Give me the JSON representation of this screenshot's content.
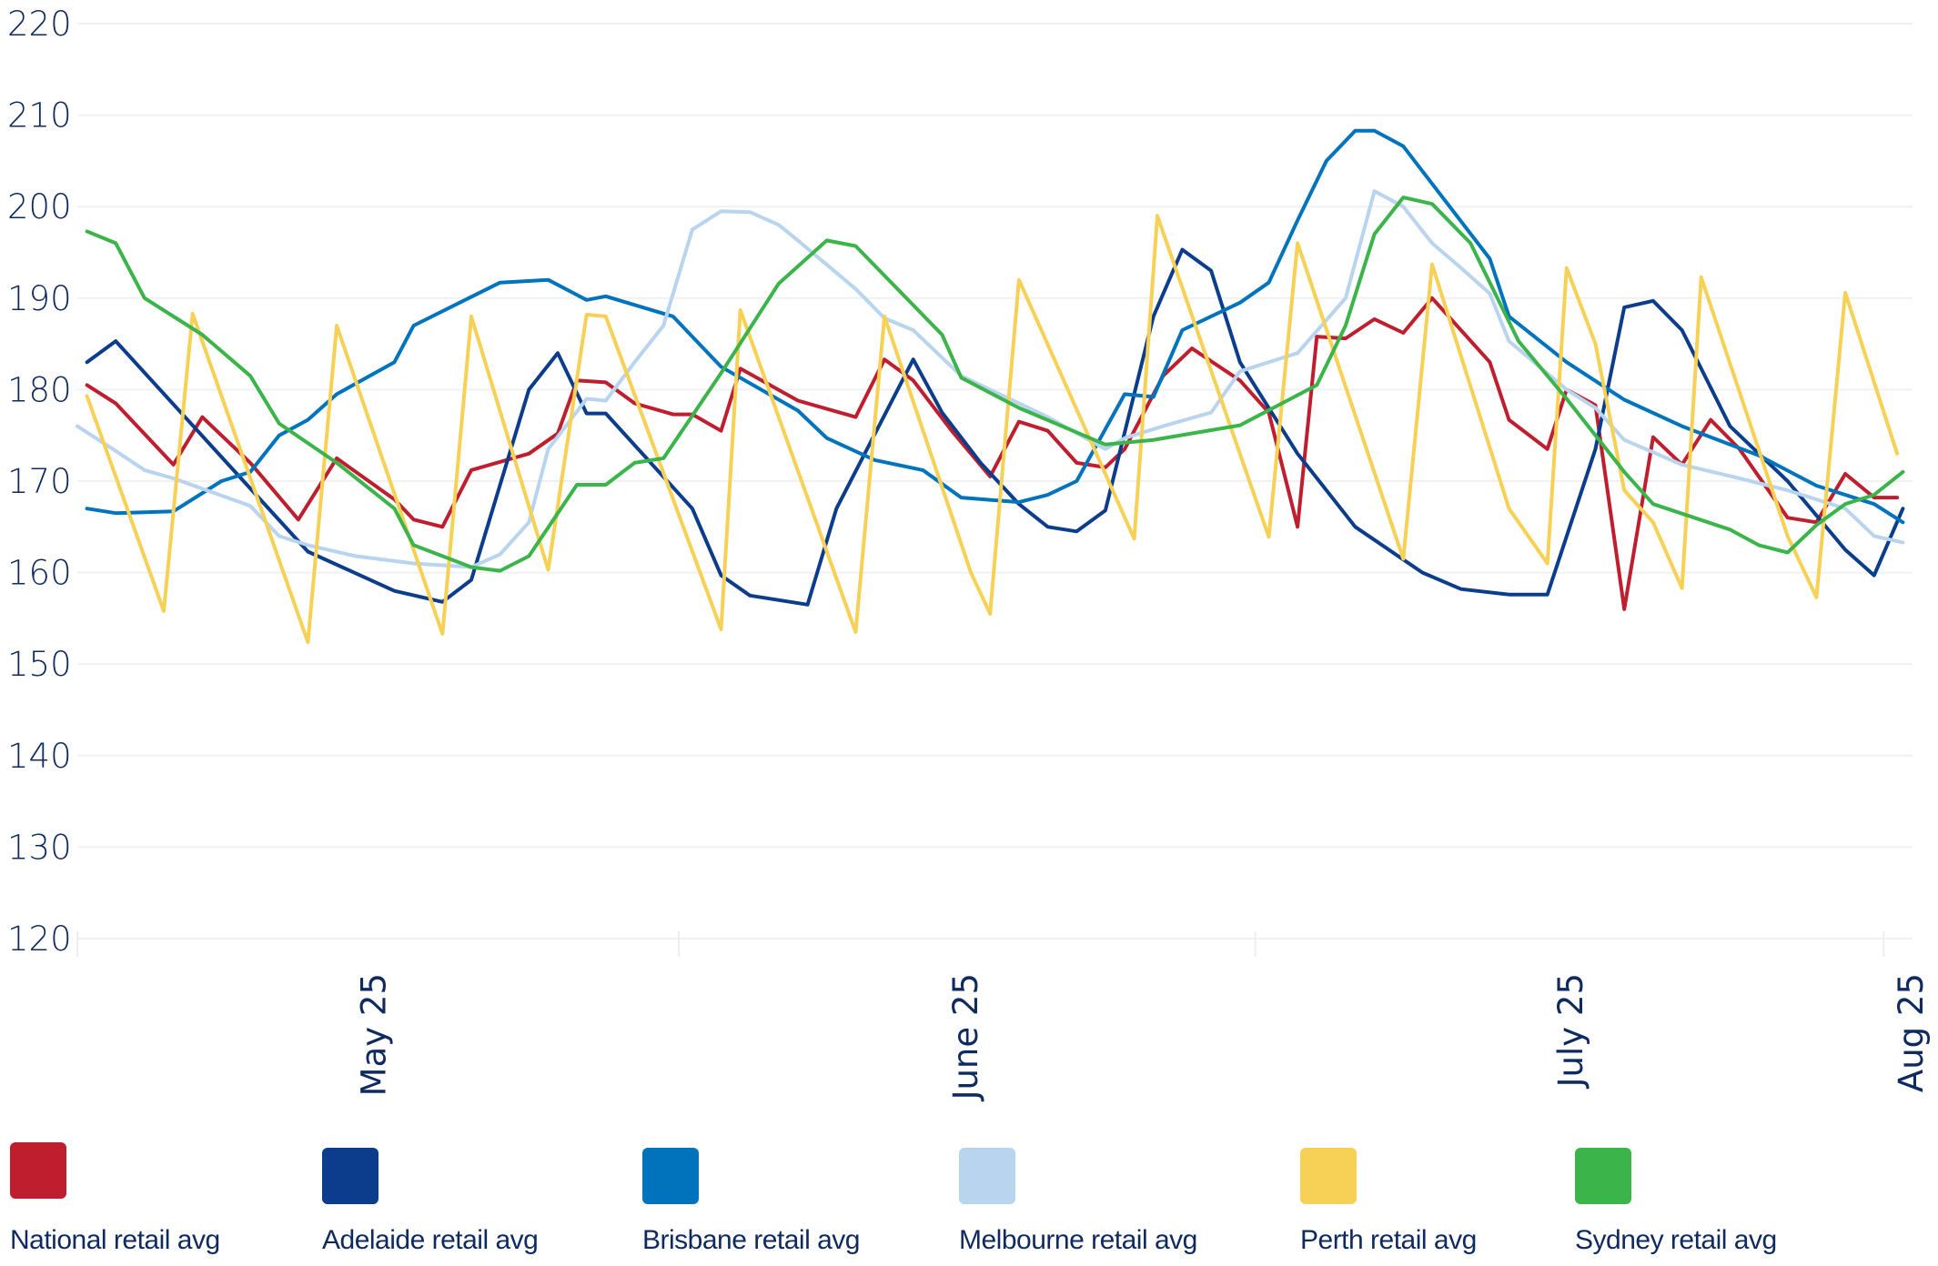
{
  "chart_data": {
    "type": "line",
    "title": "",
    "xlabel": "",
    "ylabel": "",
    "x_unit": "days (approx.)",
    "xlim": [
      0,
      95.5
    ],
    "ylim": [
      120,
      220
    ],
    "yticks": [
      120,
      130,
      140,
      150,
      160,
      170,
      180,
      190,
      200,
      210,
      220
    ],
    "ytick_labels": [
      "120",
      "130",
      "140",
      "150",
      "160",
      "170",
      "180",
      "190",
      "200",
      "210",
      "220"
    ],
    "xticks": [
      {
        "x": 15.4,
        "label": "May 25"
      },
      {
        "x": 46.2,
        "label": "June 25"
      },
      {
        "x": 77.7,
        "label": "July 25"
      },
      {
        "x": 95.4,
        "label": "Aug 25"
      }
    ],
    "x_gridlines": [
      0,
      31.3,
      61.3,
      94
    ],
    "grid": true,
    "legend_placement": "bottom",
    "series": [
      {
        "name": "National retail avg",
        "color": "#be1e2d",
        "points": [
          [
            0.5,
            180.5
          ],
          [
            2,
            178.5
          ],
          [
            5,
            171.8
          ],
          [
            6.5,
            177
          ],
          [
            9,
            172
          ],
          [
            11.5,
            165.8
          ],
          [
            13.5,
            172.5
          ],
          [
            16.5,
            168
          ],
          [
            17.5,
            165.8
          ],
          [
            19,
            165
          ],
          [
            20.5,
            171.2
          ],
          [
            23.5,
            173
          ],
          [
            25,
            175.2
          ],
          [
            26,
            181
          ],
          [
            27.5,
            180.8
          ],
          [
            29,
            178.5
          ],
          [
            31,
            177.3
          ],
          [
            32,
            177.3
          ],
          [
            33.5,
            175.5
          ],
          [
            34.5,
            182.3
          ],
          [
            37.5,
            178.8
          ],
          [
            40.5,
            177
          ],
          [
            42,
            183.3
          ],
          [
            43.5,
            181
          ],
          [
            45.5,
            175.5
          ],
          [
            47.5,
            170.5
          ],
          [
            49,
            176.5
          ],
          [
            50.5,
            175.5
          ],
          [
            52,
            172
          ],
          [
            53.5,
            171.5
          ],
          [
            54.5,
            173.5
          ],
          [
            56.5,
            181.5
          ],
          [
            58,
            184.5
          ],
          [
            60.5,
            181
          ],
          [
            62,
            177.5
          ],
          [
            63.5,
            165
          ],
          [
            64.5,
            185.8
          ],
          [
            66,
            185.6
          ],
          [
            67.5,
            187.7
          ],
          [
            69,
            186.2
          ],
          [
            70.5,
            190
          ],
          [
            73.5,
            183
          ],
          [
            74.5,
            176.7
          ],
          [
            76.5,
            173.5
          ],
          [
            77.5,
            180
          ],
          [
            79,
            178.3
          ],
          [
            80.5,
            156
          ],
          [
            82,
            174.8
          ],
          [
            83.5,
            171.8
          ],
          [
            85,
            176.7
          ],
          [
            86.5,
            173.5
          ],
          [
            89,
            166
          ],
          [
            90.5,
            165.5
          ],
          [
            92,
            170.8
          ],
          [
            93.5,
            168.2
          ],
          [
            94.7,
            168.2
          ]
        ]
      },
      {
        "name": "Adelaide retail avg",
        "color": "#0b3d8c",
        "points": [
          [
            0.5,
            183
          ],
          [
            2,
            185.3
          ],
          [
            12,
            162.3
          ],
          [
            16.5,
            158
          ],
          [
            19,
            156.8
          ],
          [
            20.5,
            159.2
          ],
          [
            23.5,
            180
          ],
          [
            25,
            184
          ],
          [
            26.5,
            177.4
          ],
          [
            27.5,
            177.4
          ],
          [
            32,
            167
          ],
          [
            33.5,
            159.7
          ],
          [
            35,
            157.5
          ],
          [
            38,
            156.5
          ],
          [
            39.5,
            167
          ],
          [
            43.5,
            183.3
          ],
          [
            45,
            177.5
          ],
          [
            47,
            172
          ],
          [
            49,
            167.5
          ],
          [
            50.5,
            165
          ],
          [
            52,
            164.5
          ],
          [
            53.5,
            166.8
          ],
          [
            56,
            188
          ],
          [
            57.5,
            195.3
          ],
          [
            59,
            193
          ],
          [
            60.5,
            183
          ],
          [
            63.5,
            173
          ],
          [
            66.5,
            165
          ],
          [
            70,
            160
          ],
          [
            72,
            158.2
          ],
          [
            74.5,
            157.6
          ],
          [
            76.5,
            157.6
          ],
          [
            79,
            173.5
          ],
          [
            80.5,
            189
          ],
          [
            82,
            189.7
          ],
          [
            83.5,
            186.5
          ],
          [
            86,
            176
          ],
          [
            89,
            170
          ],
          [
            92,
            162.5
          ],
          [
            93.5,
            159.7
          ],
          [
            95,
            167
          ]
        ]
      },
      {
        "name": "Brisbane retail avg",
        "color": "#0073bd",
        "points": [
          [
            0.5,
            167
          ],
          [
            2,
            166.5
          ],
          [
            5,
            166.7
          ],
          [
            7.5,
            170
          ],
          [
            9,
            171
          ],
          [
            10.5,
            175
          ],
          [
            12,
            176.7
          ],
          [
            13.5,
            179.5
          ],
          [
            16.5,
            183
          ],
          [
            17.5,
            187
          ],
          [
            22,
            191.7
          ],
          [
            24.5,
            192
          ],
          [
            26.5,
            189.8
          ],
          [
            27.5,
            190.2
          ],
          [
            31,
            188
          ],
          [
            33.5,
            182.5
          ],
          [
            37.5,
            177.7
          ],
          [
            39,
            174.7
          ],
          [
            41.5,
            172.3
          ],
          [
            44,
            171.2
          ],
          [
            46,
            168.2
          ],
          [
            49,
            167.7
          ],
          [
            50.5,
            168.5
          ],
          [
            52,
            170
          ],
          [
            54.5,
            179.5
          ],
          [
            56,
            179.2
          ],
          [
            57.5,
            186.5
          ],
          [
            60.5,
            189.5
          ],
          [
            62,
            191.7
          ],
          [
            63.5,
            198.5
          ],
          [
            65,
            205
          ],
          [
            66.5,
            208.3
          ],
          [
            67.5,
            208.3
          ],
          [
            69,
            206.6
          ],
          [
            73.5,
            194.3
          ],
          [
            74.5,
            188
          ],
          [
            77.5,
            183
          ],
          [
            80.5,
            178.9
          ],
          [
            83.5,
            176
          ],
          [
            87.5,
            172.8
          ],
          [
            90.5,
            169.5
          ],
          [
            93.5,
            167.5
          ],
          [
            95,
            165.5
          ]
        ]
      },
      {
        "name": "Melbourne retail avg",
        "color": "#b9d4ef",
        "points": [
          [
            0,
            176
          ],
          [
            2,
            173.3
          ],
          [
            3.5,
            171.2
          ],
          [
            5,
            170.3
          ],
          [
            9,
            167.3
          ],
          [
            10.5,
            164
          ],
          [
            12,
            163
          ],
          [
            14.5,
            161.8
          ],
          [
            17.5,
            161
          ],
          [
            20.5,
            160.6
          ],
          [
            22,
            162
          ],
          [
            23.5,
            165.5
          ],
          [
            24.5,
            173.5
          ],
          [
            26.5,
            179
          ],
          [
            27.5,
            178.8
          ],
          [
            29,
            183
          ],
          [
            30.5,
            187
          ],
          [
            32,
            197.5
          ],
          [
            33.5,
            199.5
          ],
          [
            35,
            199.4
          ],
          [
            36.5,
            198
          ],
          [
            37.5,
            196.3
          ],
          [
            40.5,
            191
          ],
          [
            42,
            187.8
          ],
          [
            43.5,
            186.5
          ],
          [
            46,
            181.5
          ],
          [
            47.5,
            180
          ],
          [
            50.5,
            177
          ],
          [
            53.5,
            173.5
          ],
          [
            54.5,
            174.7
          ],
          [
            56.5,
            176
          ],
          [
            59,
            177.5
          ],
          [
            60.5,
            182
          ],
          [
            63.5,
            184
          ],
          [
            66,
            190
          ],
          [
            67.5,
            201.7
          ],
          [
            69,
            200
          ],
          [
            70.5,
            196
          ],
          [
            72,
            193.3
          ],
          [
            73.5,
            190.5
          ],
          [
            74.5,
            185.3
          ],
          [
            77.5,
            180
          ],
          [
            79,
            178
          ],
          [
            80.5,
            174.5
          ],
          [
            83.5,
            171.8
          ],
          [
            86.5,
            170.3
          ],
          [
            89,
            169
          ],
          [
            92,
            167
          ],
          [
            93.5,
            164
          ],
          [
            95,
            163.3
          ]
        ]
      },
      {
        "name": "Perth retail avg",
        "color": "#f6d155",
        "points": [
          [
            0.5,
            179.3
          ],
          [
            4.5,
            155.8
          ],
          [
            6,
            188.3
          ],
          [
            12,
            152.4
          ],
          [
            13.5,
            187
          ],
          [
            19,
            153.3
          ],
          [
            20.5,
            188
          ],
          [
            24.5,
            160.3
          ],
          [
            26.5,
            188.2
          ],
          [
            27.5,
            188
          ],
          [
            33.5,
            153.8
          ],
          [
            34.5,
            188.7
          ],
          [
            40.5,
            153.5
          ],
          [
            42,
            188
          ],
          [
            46.5,
            160
          ],
          [
            47.5,
            155.5
          ],
          [
            49,
            192
          ],
          [
            55,
            163.7
          ],
          [
            56.2,
            199
          ],
          [
            62,
            163.9
          ],
          [
            63.5,
            196
          ],
          [
            69,
            161.5
          ],
          [
            70.5,
            193.7
          ],
          [
            74.5,
            167
          ],
          [
            76.5,
            161
          ],
          [
            77.5,
            193.3
          ],
          [
            79,
            185
          ],
          [
            80.5,
            169
          ],
          [
            82,
            165.5
          ],
          [
            83.5,
            158.3
          ],
          [
            84.5,
            192.3
          ],
          [
            89,
            164
          ],
          [
            90.5,
            157.3
          ],
          [
            92,
            190.6
          ],
          [
            94.7,
            173
          ]
        ]
      },
      {
        "name": "Sydney retail avg",
        "color": "#3bb44a",
        "points": [
          [
            0.5,
            197.3
          ],
          [
            2,
            196
          ],
          [
            3.5,
            190
          ],
          [
            6.5,
            186
          ],
          [
            9,
            181.5
          ],
          [
            10.5,
            176.3
          ],
          [
            13.5,
            172
          ],
          [
            16.5,
            167
          ],
          [
            17.5,
            163
          ],
          [
            20.5,
            160.6
          ],
          [
            22,
            160.2
          ],
          [
            23.5,
            161.8
          ],
          [
            26,
            169.6
          ],
          [
            27.5,
            169.6
          ],
          [
            29,
            172
          ],
          [
            30.5,
            172.5
          ],
          [
            33.5,
            181.8
          ],
          [
            36.5,
            191.6
          ],
          [
            39,
            196.3
          ],
          [
            40.5,
            195.7
          ],
          [
            45,
            186
          ],
          [
            46,
            181.3
          ],
          [
            49,
            178
          ],
          [
            53.5,
            174
          ],
          [
            56,
            174.5
          ],
          [
            60.5,
            176.1
          ],
          [
            64.5,
            180.5
          ],
          [
            66,
            187
          ],
          [
            67.5,
            197
          ],
          [
            69,
            201
          ],
          [
            70.5,
            200.3
          ],
          [
            72.5,
            196
          ],
          [
            75,
            185.3
          ],
          [
            77.5,
            179
          ],
          [
            80.5,
            171
          ],
          [
            82,
            167.5
          ],
          [
            86,
            164.7
          ],
          [
            87.5,
            163
          ],
          [
            89,
            162.2
          ],
          [
            90.5,
            165.2
          ],
          [
            92,
            167.5
          ],
          [
            93.5,
            168.5
          ],
          [
            95,
            171
          ]
        ]
      }
    ]
  }
}
